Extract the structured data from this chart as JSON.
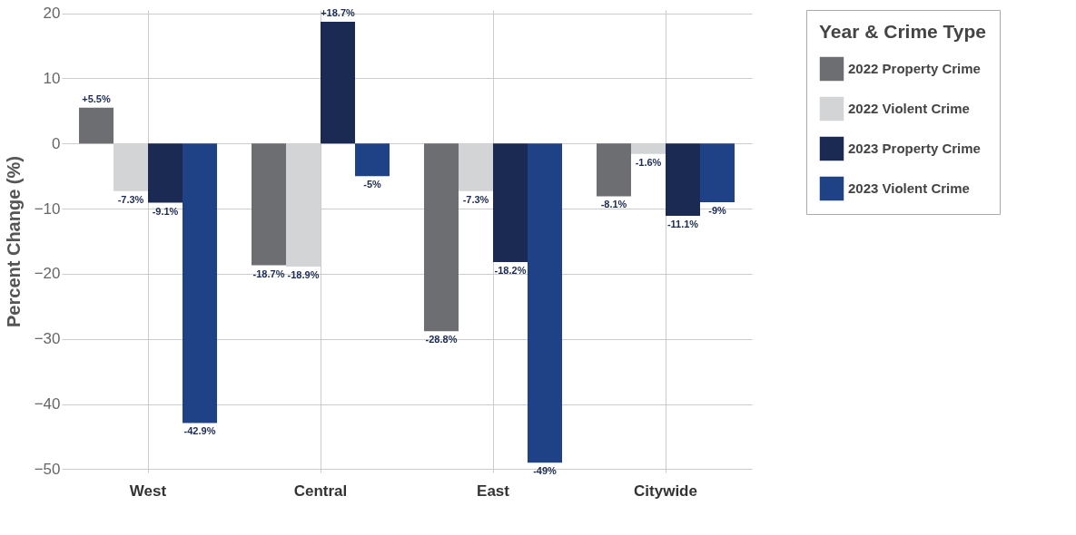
{
  "chart_data": {
    "type": "bar",
    "ylabel": "Percent Change (%)",
    "legend_title": "Year & Crime Type",
    "categories": [
      "West",
      "Central",
      "East",
      "Citywide"
    ],
    "series": [
      {
        "name": "2022 Property Crime",
        "color": "#6d6e72",
        "values": [
          5.5,
          -18.7,
          -28.8,
          -8.1
        ],
        "value_labels": [
          "+5.5%",
          "-18.7%",
          "-28.8%",
          "-8.1%"
        ]
      },
      {
        "name": "2022 Violent Crime",
        "color": "#d3d4d6",
        "values": [
          -7.3,
          -18.9,
          -7.3,
          -1.6
        ],
        "value_labels": [
          "-7.3%",
          "-18.9%",
          "-7.3%",
          "-1.6%"
        ]
      },
      {
        "name": "2023 Property Crime",
        "color": "#1b2a52",
        "values": [
          -9.1,
          18.7,
          -18.2,
          -11.1
        ],
        "value_labels": [
          "-9.1%",
          "+18.7%",
          "-18.2%",
          "-11.1%"
        ]
      },
      {
        "name": "2023 Violent Crime",
        "color": "#1f4287",
        "values": [
          -42.9,
          -5,
          -49,
          -9
        ],
        "value_labels": [
          "-42.9%",
          "-5%",
          "-49%",
          "-9%"
        ]
      }
    ],
    "ylim": [
      -50.5,
      20.5
    ],
    "yticks": [
      -50,
      -40,
      -30,
      -20,
      -10,
      0,
      10,
      20
    ],
    "grid": true,
    "legend": "right"
  }
}
